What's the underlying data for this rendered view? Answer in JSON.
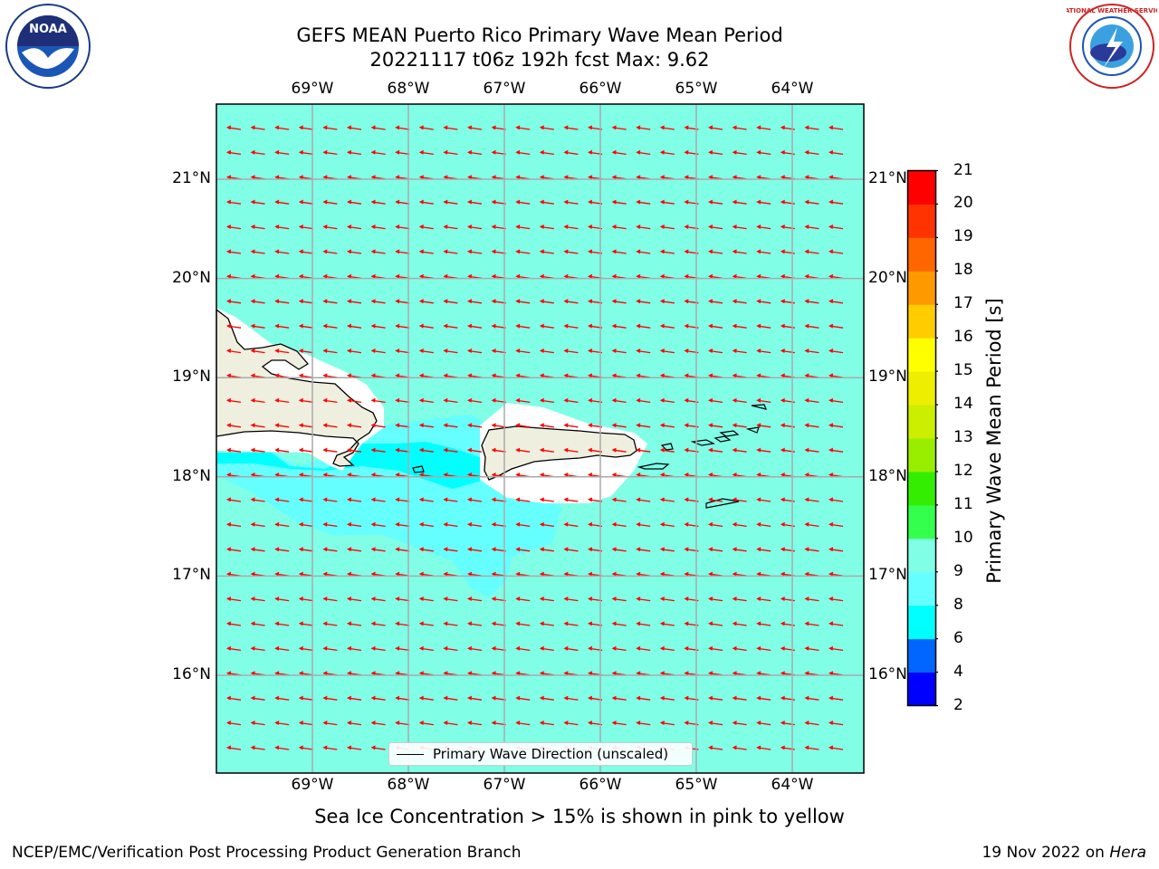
{
  "title": {
    "line1": "GEFS MEAN Puerto Rico Primary Wave Mean Period",
    "line2": "20221117 t06z 192h fcst   Max: 9.62"
  },
  "logos": {
    "left": {
      "name": "noaa-logo",
      "text": "NOAA"
    },
    "right": {
      "name": "nws-logo",
      "text": "NATIONAL WEATHER SERVICE"
    }
  },
  "map": {
    "lon_labels": [
      "69°W",
      "68°W",
      "67°W",
      "66°W",
      "65°W",
      "64°W"
    ],
    "lat_labels": [
      "21°N",
      "20°N",
      "19°N",
      "18°N",
      "17°N",
      "16°N"
    ],
    "lon_values": [
      -69,
      -68,
      -67,
      -66,
      -65,
      -64
    ],
    "lat_values": [
      21,
      20,
      19,
      18,
      17,
      16
    ],
    "background_color": "#80ffe6",
    "land_color": "#efefdf",
    "arrow_color": "#ff0000",
    "grid_color": "#aaaaaa",
    "legend_label": "Primary Wave Direction (unscaled)"
  },
  "colorbar": {
    "label": "Primary Wave Mean Period [s]",
    "ticks": [
      "2",
      "4",
      "6",
      "8",
      "9",
      "10",
      "11",
      "12",
      "13",
      "14",
      "15",
      "16",
      "17",
      "18",
      "19",
      "20",
      "21"
    ],
    "colors": [
      "#0000ff",
      "#0066ff",
      "#00ffff",
      "#66ffff",
      "#80ffe6",
      "#33ff4d",
      "#33ee00",
      "#99ee00",
      "#ccee00",
      "#eeee00",
      "#ffff00",
      "#ffcc00",
      "#ff9900",
      "#ff6600",
      "#ff3300",
      "#ff0000"
    ]
  },
  "subnote": "Sea Ice Concentration > 15% is shown in pink to yellow",
  "footer": {
    "left": "NCEP/EMC/Verification Post Processing Product Generation Branch",
    "right_prefix": "19 Nov 2022 on ",
    "right_host": "Hera"
  }
}
